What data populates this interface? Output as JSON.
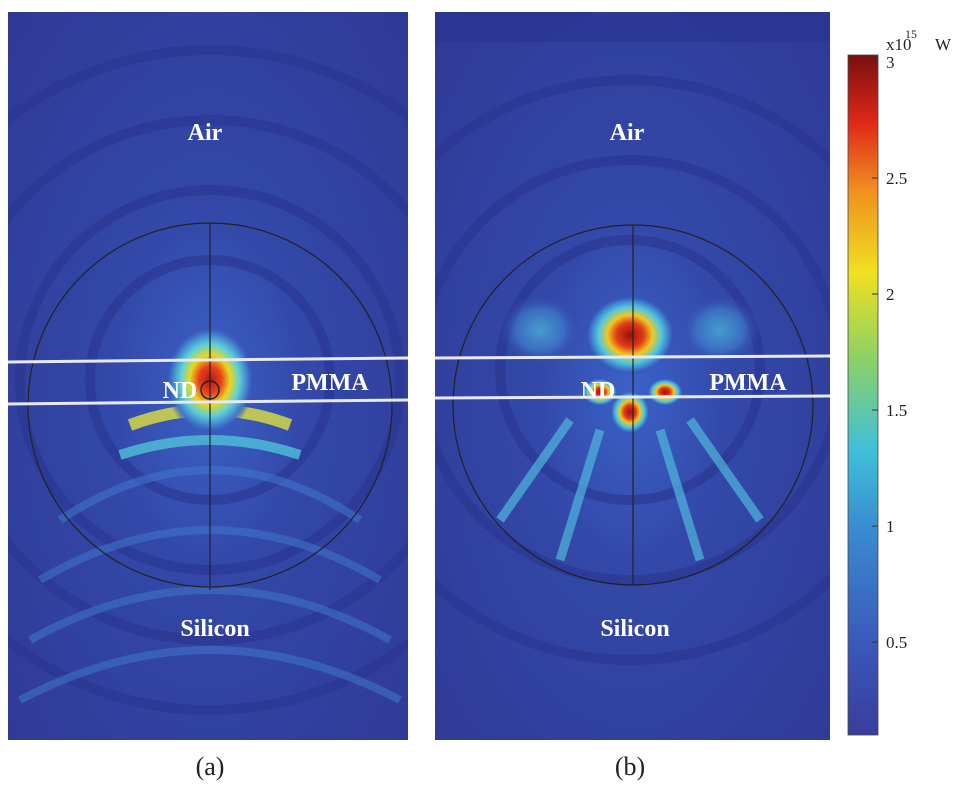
{
  "panels": [
    {
      "label": "(a)",
      "top": "Air",
      "layer": "PMMA",
      "particle": "ND",
      "bottom": "Silicon"
    },
    {
      "label": "(b)",
      "top": "Air",
      "layer": "PMMA",
      "particle": "ND",
      "bottom": "Silicon"
    }
  ],
  "colorbar": {
    "multiplier": "x10",
    "exponent": "15",
    "unit": "W",
    "lim": [
      0.1,
      3.03
    ],
    "ticks": [
      0.5,
      1,
      1.5,
      2,
      2.5,
      3
    ]
  }
}
